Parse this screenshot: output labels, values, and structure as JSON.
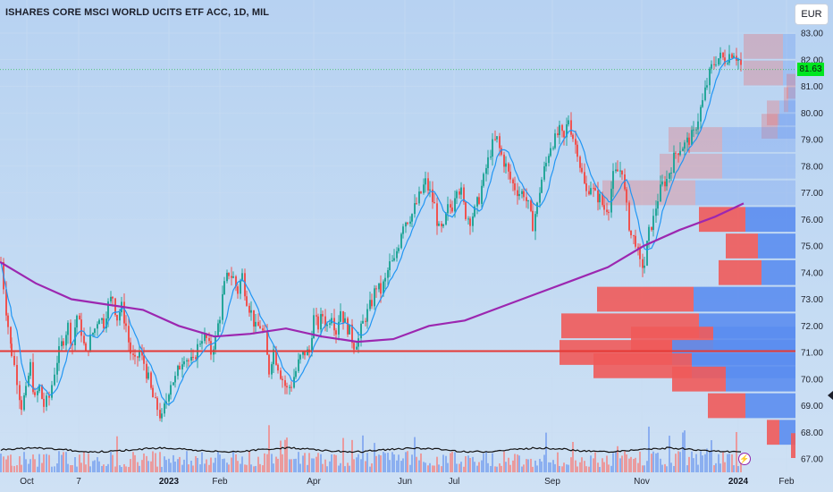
{
  "header": {
    "title": "ISHARES CORE MSCI WORLD UCITS ETF ACC, 1D, MIL",
    "currency": "EUR",
    "last_price": "81.63"
  },
  "chart_data": {
    "type": "candlestick",
    "y_ticks": [
      "83.00",
      "82.00",
      "81.00",
      "80.00",
      "79.00",
      "78.00",
      "77.00",
      "76.00",
      "75.00",
      "74.00",
      "73.00",
      "72.00",
      "71.00",
      "70.00",
      "69.00",
      "68.00",
      "67.00"
    ],
    "x_ticks": [
      {
        "label": "Oct",
        "bold": false
      },
      {
        "label": "7",
        "bold": false
      },
      {
        "label": "2023",
        "bold": true
      },
      {
        "label": "Feb",
        "bold": false
      },
      {
        "label": "Apr",
        "bold": false
      },
      {
        "label": "Jun",
        "bold": false
      },
      {
        "label": "Jul",
        "bold": false
      },
      {
        "label": "Sep",
        "bold": false
      },
      {
        "label": "Nov",
        "bold": false
      },
      {
        "label": "2024",
        "bold": true
      },
      {
        "label": "Feb",
        "bold": false
      }
    ],
    "ylim": [
      67,
      83
    ],
    "last_price": 81.63,
    "horizontal_line": 71.05,
    "colors": {
      "up": "#26a69a",
      "down": "#ef5350",
      "ma_fast": "#2196f3",
      "ma_slow": "#9c27b0",
      "hline": "#e53935",
      "vp_buy": "#5b8def",
      "vp_sell": "#f05a5a"
    },
    "price_path": [
      [
        0,
        74.4
      ],
      [
        8,
        72.0
      ],
      [
        12,
        71.0
      ],
      [
        18,
        70.0
      ],
      [
        23,
        69.0
      ],
      [
        28,
        69.5
      ],
      [
        33,
        70.5
      ],
      [
        38,
        69.2
      ],
      [
        43,
        69.7
      ],
      [
        48,
        69.0
      ],
      [
        54,
        69.3
      ],
      [
        60,
        70.3
      ],
      [
        65,
        71.0
      ],
      [
        70,
        71.5
      ],
      [
        75,
        72.0
      ],
      [
        80,
        71.3
      ],
      [
        85,
        72.4
      ],
      [
        90,
        71.8
      ],
      [
        95,
        70.9
      ],
      [
        100,
        71.5
      ],
      [
        105,
        71.9
      ],
      [
        110,
        72.4
      ],
      [
        115,
        72.1
      ],
      [
        120,
        72.8
      ],
      [
        125,
        73.1
      ],
      [
        130,
        72.3
      ],
      [
        135,
        72.7
      ],
      [
        140,
        72.0
      ],
      [
        145,
        71.0
      ],
      [
        150,
        70.6
      ],
      [
        155,
        71.0
      ],
      [
        160,
        70.6
      ],
      [
        165,
        70.0
      ],
      [
        170,
        69.3
      ],
      [
        175,
        68.9
      ],
      [
        180,
        68.5
      ],
      [
        185,
        69.2
      ],
      [
        190,
        69.9
      ],
      [
        195,
        70.0
      ],
      [
        200,
        70.5
      ],
      [
        205,
        70.9
      ],
      [
        210,
        70.7
      ],
      [
        215,
        70.6
      ],
      [
        220,
        71.2
      ],
      [
        225,
        71.6
      ],
      [
        230,
        71.5
      ],
      [
        235,
        71.0
      ],
      [
        240,
        71.5
      ],
      [
        245,
        72.4
      ],
      [
        250,
        73.5
      ],
      [
        255,
        74.0
      ],
      [
        260,
        73.8
      ],
      [
        265,
        73.3
      ],
      [
        270,
        73.9
      ],
      [
        275,
        73.0
      ],
      [
        280,
        72.5
      ],
      [
        285,
        71.9
      ],
      [
        290,
        72.0
      ],
      [
        295,
        71.6
      ],
      [
        300,
        70.3
      ],
      [
        305,
        71.1
      ],
      [
        310,
        70.5
      ],
      [
        315,
        70.0
      ],
      [
        320,
        69.6
      ],
      [
        325,
        69.8
      ],
      [
        330,
        70.3
      ],
      [
        335,
        70.8
      ],
      [
        340,
        71.0
      ],
      [
        345,
        71.0
      ],
      [
        350,
        72.3
      ],
      [
        355,
        72.0
      ],
      [
        360,
        72.4
      ],
      [
        365,
        72.0
      ],
      [
        370,
        72.5
      ],
      [
        375,
        71.8
      ],
      [
        380,
        72.6
      ],
      [
        385,
        72.1
      ],
      [
        390,
        71.8
      ],
      [
        395,
        71.3
      ],
      [
        400,
        71.5
      ],
      [
        405,
        72.1
      ],
      [
        410,
        72.5
      ],
      [
        415,
        72.9
      ],
      [
        420,
        73.5
      ],
      [
        425,
        73.3
      ],
      [
        430,
        73.7
      ],
      [
        435,
        74.3
      ],
      [
        440,
        74.4
      ],
      [
        445,
        75.1
      ],
      [
        450,
        75.9
      ],
      [
        455,
        76.0
      ],
      [
        460,
        76.2
      ],
      [
        465,
        76.6
      ],
      [
        470,
        77.0
      ],
      [
        475,
        77.4
      ],
      [
        480,
        77.0
      ],
      [
        485,
        76.5
      ],
      [
        490,
        75.6
      ],
      [
        495,
        75.6
      ],
      [
        500,
        76.4
      ],
      [
        505,
        76.5
      ],
      [
        510,
        77.3
      ],
      [
        515,
        77.0
      ],
      [
        520,
        76.2
      ],
      [
        525,
        76.0
      ],
      [
        530,
        76.3
      ],
      [
        535,
        76.8
      ],
      [
        540,
        77.5
      ],
      [
        545,
        78.2
      ],
      [
        550,
        78.8
      ],
      [
        555,
        79.0
      ],
      [
        560,
        78.4
      ],
      [
        565,
        78.0
      ],
      [
        570,
        77.5
      ],
      [
        575,
        77.2
      ],
      [
        580,
        77.0
      ],
      [
        585,
        77.0
      ],
      [
        590,
        76.5
      ],
      [
        595,
        75.8
      ],
      [
        600,
        76.5
      ],
      [
        605,
        77.5
      ],
      [
        610,
        78.1
      ],
      [
        615,
        78.8
      ],
      [
        620,
        79.0
      ],
      [
        625,
        79.3
      ],
      [
        630,
        79.0
      ],
      [
        635,
        79.8
      ],
      [
        640,
        79.1
      ],
      [
        645,
        78.6
      ],
      [
        650,
        77.7
      ],
      [
        655,
        77.0
      ],
      [
        660,
        77.3
      ],
      [
        665,
        76.9
      ],
      [
        670,
        76.8
      ],
      [
        675,
        76.4
      ],
      [
        680,
        76.5
      ],
      [
        685,
        77.6
      ],
      [
        690,
        77.8
      ],
      [
        695,
        77.9
      ],
      [
        700,
        76.4
      ],
      [
        705,
        75.4
      ],
      [
        710,
        75.2
      ],
      [
        715,
        74.3
      ],
      [
        720,
        74.3
      ],
      [
        725,
        75.5
      ],
      [
        730,
        76.0
      ],
      [
        735,
        76.8
      ],
      [
        740,
        77.3
      ],
      [
        745,
        77.5
      ],
      [
        750,
        78.0
      ],
      [
        755,
        78.5
      ],
      [
        760,
        78.7
      ],
      [
        765,
        78.8
      ],
      [
        770,
        79.0
      ],
      [
        775,
        79.2
      ],
      [
        780,
        79.8
      ],
      [
        785,
        80.4
      ],
      [
        790,
        81.1
      ],
      [
        795,
        81.7
      ],
      [
        800,
        82.0
      ],
      [
        805,
        82.1
      ],
      [
        810,
        82.0
      ],
      [
        815,
        82.2
      ],
      [
        820,
        82.3
      ],
      [
        825,
        82.0
      ],
      [
        830,
        81.6
      ]
    ],
    "ma_slow": [
      [
        0,
        74.4
      ],
      [
        40,
        73.6
      ],
      [
        80,
        73.0
      ],
      [
        120,
        72.8
      ],
      [
        160,
        72.6
      ],
      [
        200,
        72.0
      ],
      [
        240,
        71.6
      ],
      [
        280,
        71.7
      ],
      [
        320,
        71.9
      ],
      [
        360,
        71.6
      ],
      [
        400,
        71.4
      ],
      [
        440,
        71.5
      ],
      [
        480,
        72.0
      ],
      [
        520,
        72.2
      ],
      [
        560,
        72.7
      ],
      [
        600,
        73.2
      ],
      [
        640,
        73.7
      ],
      [
        680,
        74.2
      ],
      [
        720,
        75.0
      ],
      [
        760,
        75.6
      ],
      [
        800,
        76.1
      ],
      [
        832,
        76.6
      ]
    ],
    "volume_profile": [
      {
        "price": 82.5,
        "sell": 44,
        "buy": 14
      },
      {
        "price": 81.5,
        "sell": 44,
        "buy": 14
      },
      {
        "price": 81.0,
        "sell": 10,
        "buy": 0
      },
      {
        "price": 80.5,
        "sell": 5,
        "buy": 8
      },
      {
        "price": 80.0,
        "sell": 14,
        "buy": 18
      },
      {
        "price": 79.5,
        "sell": 18,
        "buy": 20
      },
      {
        "price": 79.0,
        "sell": 60,
        "buy": 82
      },
      {
        "price": 78.0,
        "sell": 70,
        "buy": 82
      },
      {
        "price": 77.0,
        "sell": 104,
        "buy": 112
      },
      {
        "price": 76.0,
        "sell": 52,
        "buy": 56
      },
      {
        "price": 75.0,
        "sell": 36,
        "buy": 42
      },
      {
        "price": 74.0,
        "sell": 48,
        "buy": 38
      },
      {
        "price": 73.0,
        "sell": 108,
        "buy": 114
      },
      {
        "price": 72.0,
        "sell": 154,
        "buy": 108
      },
      {
        "price": 71.5,
        "sell": 92,
        "buy": 92
      },
      {
        "price": 71.0,
        "sell": 126,
        "buy": 138
      },
      {
        "price": 70.5,
        "sell": 110,
        "buy": 116
      },
      {
        "price": 70.0,
        "sell": 60,
        "buy": 78
      },
      {
        "price": 69.0,
        "sell": 42,
        "buy": 56
      },
      {
        "price": 68.0,
        "sell": 14,
        "buy": 18
      },
      {
        "price": 67.5,
        "sell": 5,
        "buy": 0
      }
    ]
  }
}
